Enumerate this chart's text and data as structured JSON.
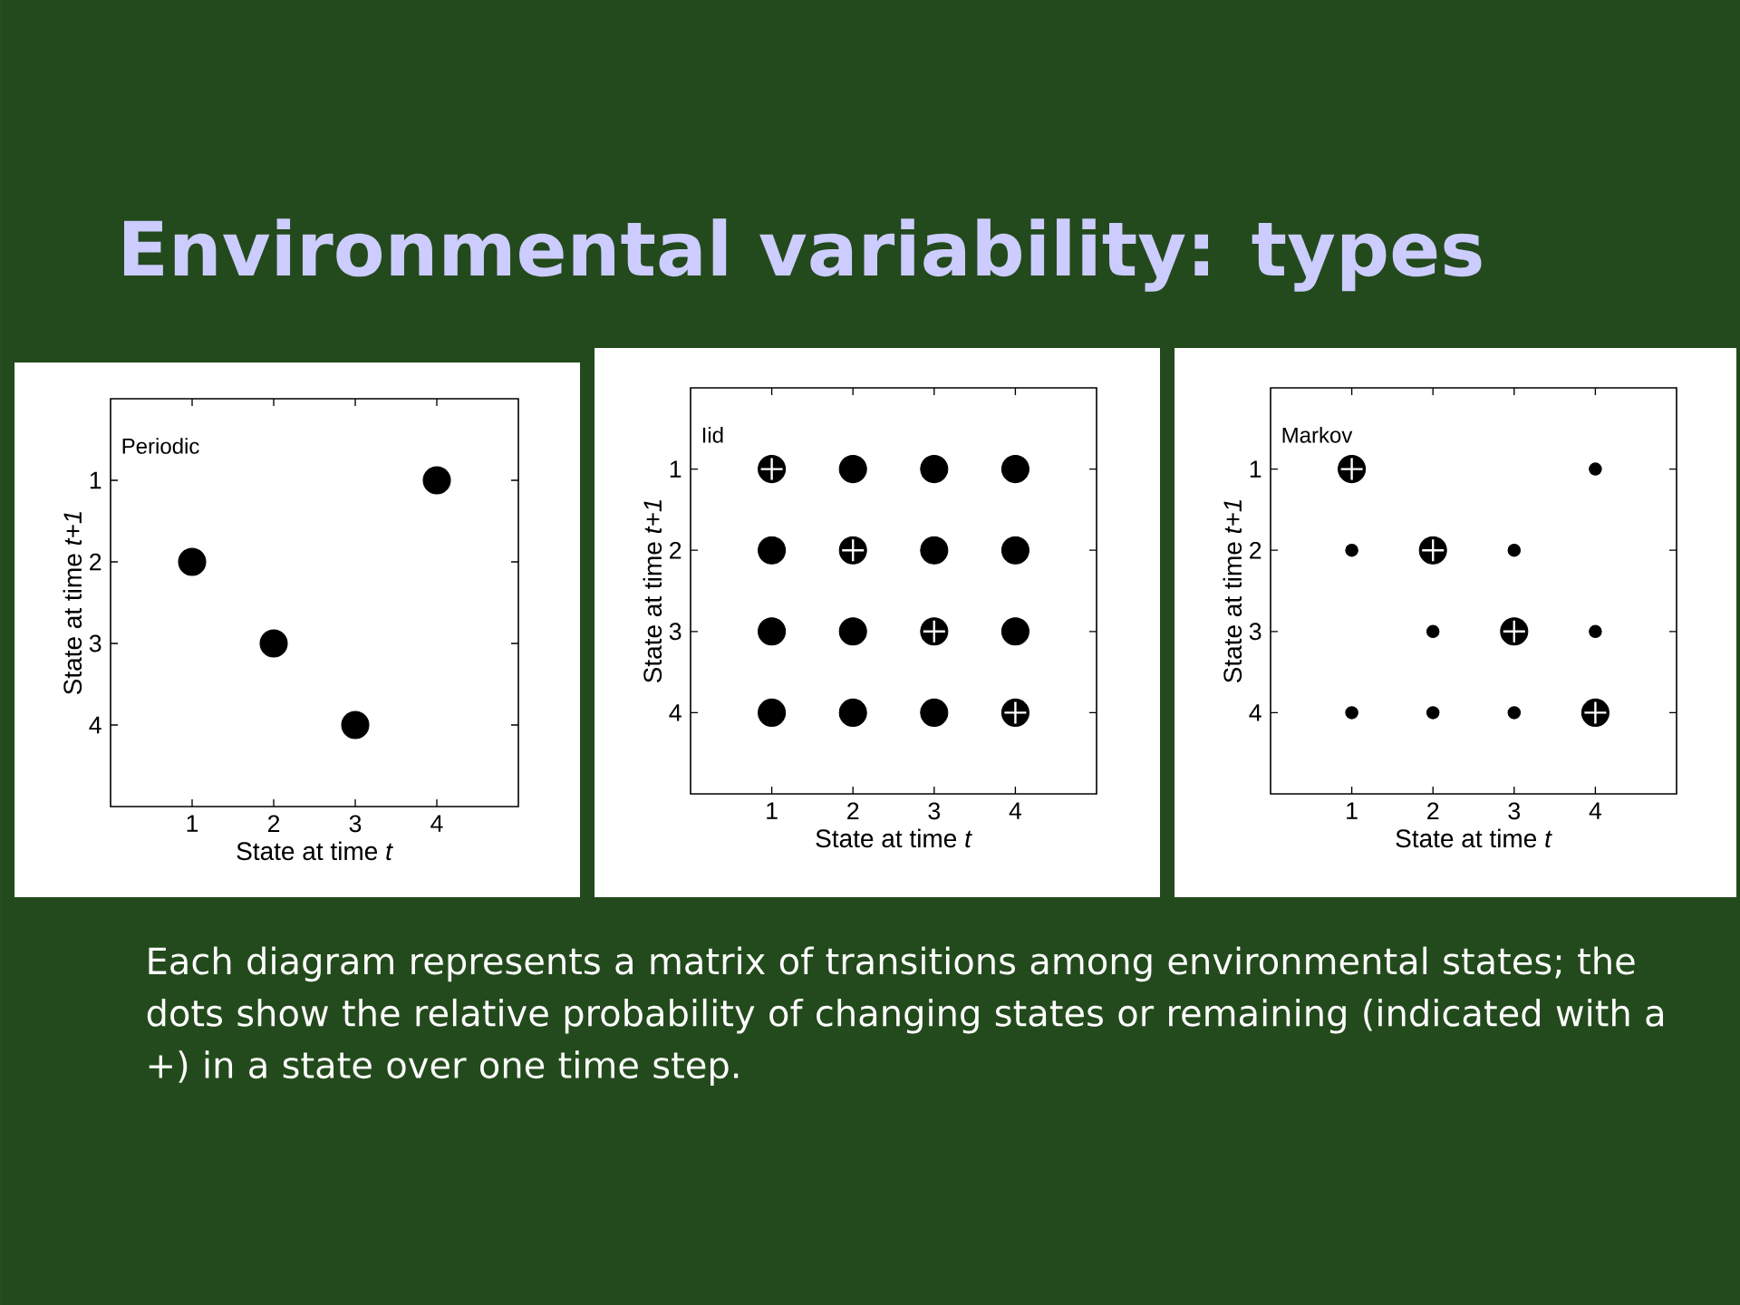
{
  "chart_data": [
    {
      "type": "other",
      "title": "Environmental variability: types",
      "annotations": [
        "Each diagram represents a matrix of transitions among environmental states; the dots show the relative probability of changing states or remaining (indicated with a +) in a state over one time step."
      ]
    },
    {
      "type": "bubble",
      "annotations": [
        "Periodic"
      ],
      "xlabel": "State at time *t*",
      "ylabel": "State at time *t+1*",
      "xlim": [
        0,
        5
      ],
      "ylim": [
        5,
        0
      ],
      "xticks": [
        1,
        2,
        3,
        4
      ],
      "yticks": [
        1,
        2,
        3,
        4
      ],
      "series": [
        {
          "color": "#000000",
          "x": [
            1,
            2,
            3,
            4
          ],
          "values": [
            2,
            3,
            4,
            1
          ],
          "sizes": [
            1,
            1,
            1,
            1
          ]
        }
      ]
    },
    {
      "type": "bubble",
      "annotations": [
        "Iid"
      ],
      "xlabel": "State at time *t*",
      "ylabel": "State at time *t+1*",
      "xlim": [
        0,
        5
      ],
      "ylim": [
        5,
        0
      ],
      "xticks": [
        1,
        2,
        3,
        4
      ],
      "yticks": [
        1,
        2,
        3,
        4
      ],
      "series": [
        {
          "color": "#000000",
          "x": [
            1,
            2,
            3,
            4,
            1,
            2,
            3,
            4,
            1,
            2,
            3,
            4,
            1,
            2,
            3,
            4
          ],
          "values": [
            1,
            1,
            1,
            1,
            2,
            2,
            2,
            2,
            3,
            3,
            3,
            3,
            4,
            4,
            4,
            4
          ],
          "sizes": [
            1,
            1,
            1,
            1,
            1,
            1,
            1,
            1,
            1,
            1,
            1,
            1,
            1,
            1,
            1,
            1
          ]
        },
        {
          "type": "scatter",
          "marker": "cross",
          "color": "#ffffff",
          "x": [
            1,
            2,
            3,
            4
          ],
          "values": [
            1,
            2,
            3,
            4
          ]
        }
      ]
    },
    {
      "type": "bubble",
      "annotations": [
        "Markov"
      ],
      "xlabel": "State at time *t*",
      "ylabel": "State at time *t+1*",
      "xlim": [
        0,
        5
      ],
      "ylim": [
        5,
        0
      ],
      "xticks": [
        1,
        2,
        3,
        4
      ],
      "yticks": [
        1,
        2,
        3,
        4
      ],
      "series": [
        {
          "color": "#000000",
          "x": [
            1,
            4,
            1,
            2,
            3,
            2,
            3,
            4,
            1,
            2,
            3,
            4
          ],
          "values": [
            1,
            1,
            2,
            2,
            2,
            3,
            3,
            3,
            4,
            4,
            4,
            4
          ],
          "sizes": [
            1,
            0.2,
            0.2,
            1,
            0.2,
            0.2,
            1,
            0.2,
            0.2,
            0.2,
            0.2,
            1
          ]
        },
        {
          "type": "scatter",
          "marker": "cross",
          "color": "#ffffff",
          "x": [
            1,
            2,
            3,
            4
          ],
          "values": [
            1,
            2,
            3,
            4
          ]
        }
      ]
    }
  ]
}
